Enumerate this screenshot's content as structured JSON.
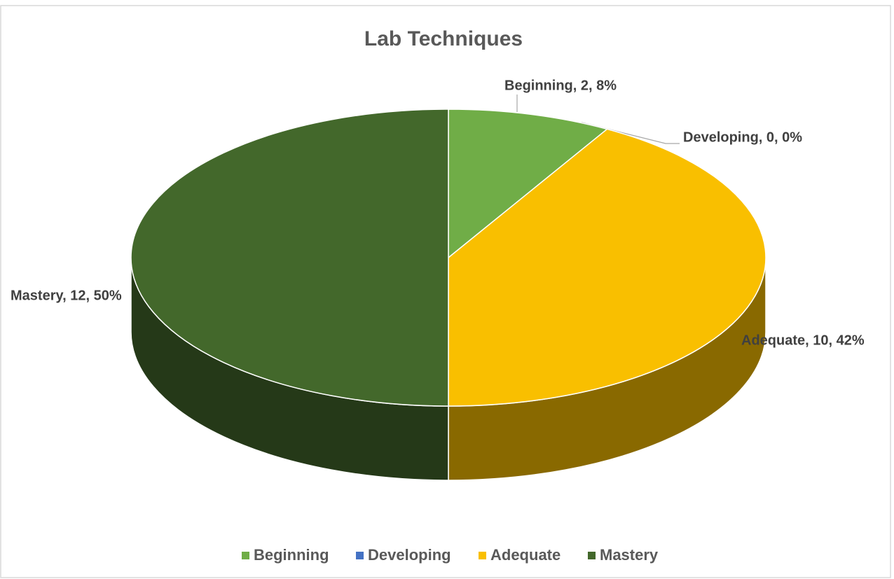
{
  "chart_data": {
    "type": "pie",
    "title": "Lab Techniques",
    "categories": [
      "Beginning",
      "Developing",
      "Adequate",
      "Mastery"
    ],
    "values": [
      2,
      0,
      10,
      12
    ],
    "value_labels": [
      "Beginning, 2, 8%",
      "Developing, 0, 0%",
      "Adequate, 10, 42%",
      "Mastery, 12, 50%"
    ],
    "colors": [
      "#70ad47",
      "#4472c4",
      "#f9bf00",
      "#43682b"
    ],
    "legend": "bottom"
  }
}
